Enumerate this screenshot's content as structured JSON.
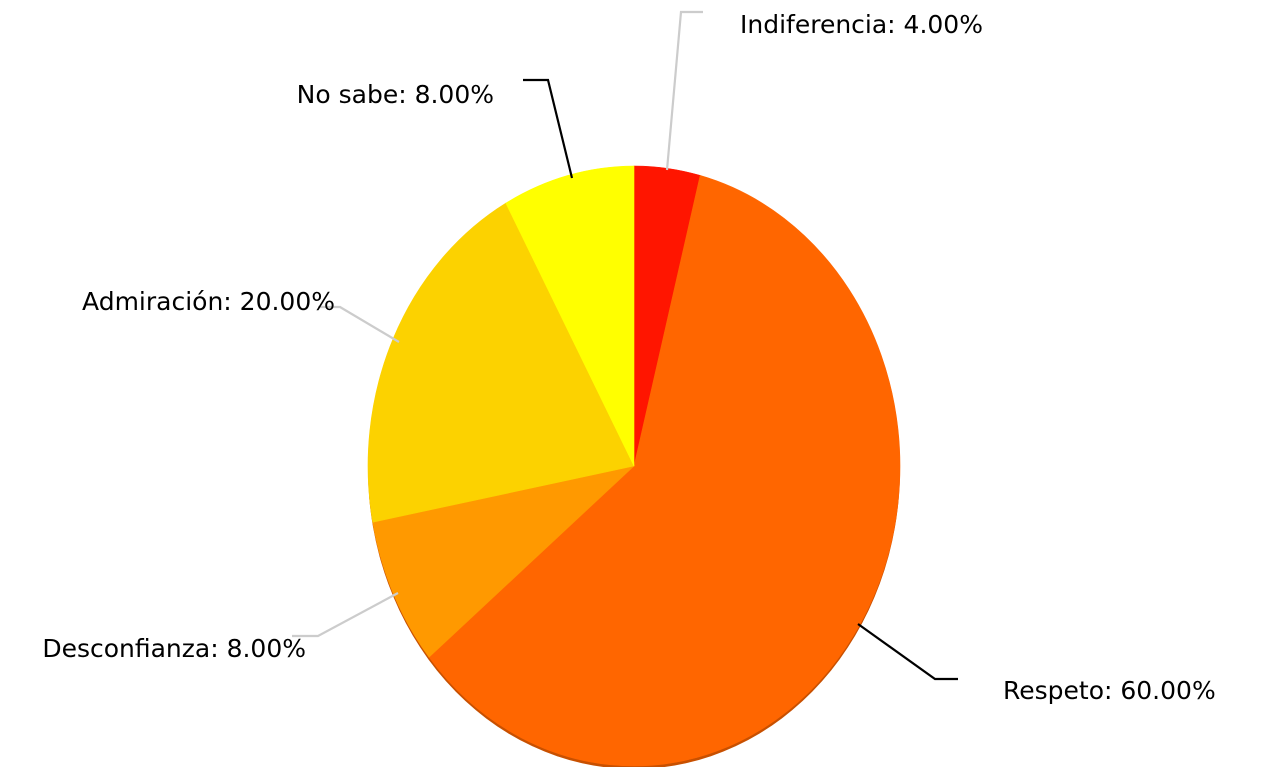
{
  "chart_data": {
    "type": "pie",
    "title": "",
    "categories": [
      "Indiferencia",
      "Respeto",
      "Desconfianza",
      "Admiración",
      "No sabe"
    ],
    "values": [
      4.0,
      60.0,
      8.0,
      20.0,
      8.0
    ],
    "labels": [
      "Indiferencia: 4.00%",
      "Respeto: 60.00%",
      "Desconfianza: 8.00%",
      "Admiración: 20.00%",
      "No sabe: 8.00%"
    ],
    "colors": [
      "#ff1500",
      "#ff6600",
      "#ff9900",
      "#fcd200",
      "#ffff00"
    ],
    "leader_colors": [
      "#cccccc",
      "#000000",
      "#cccccc",
      "#cccccc",
      "#000000"
    ],
    "start_angle": "12 o'clock",
    "direction": "clockwise",
    "legend": "none"
  }
}
